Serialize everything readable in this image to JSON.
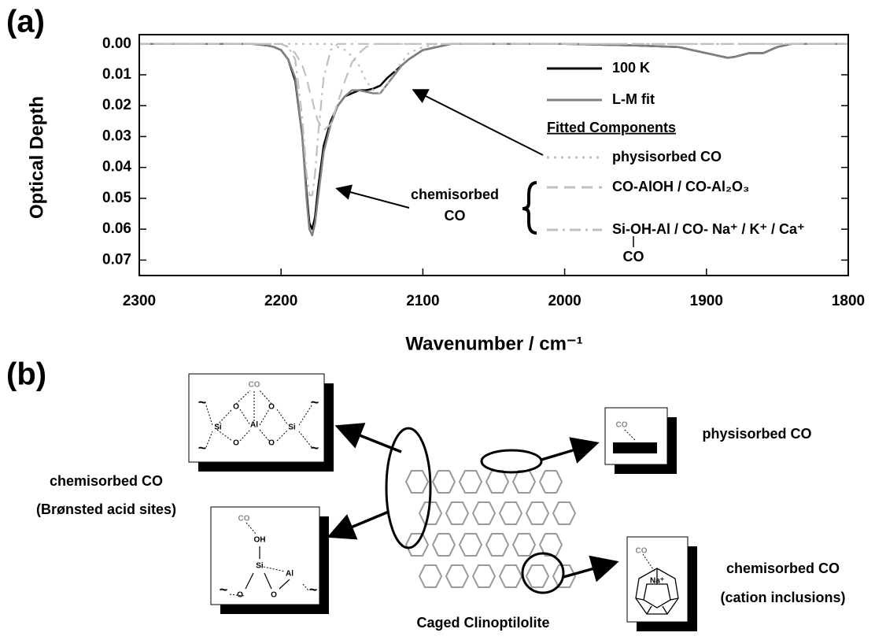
{
  "chart_data": {
    "type": "line",
    "panel_label": "(a)",
    "xlabel": "Wavenumber / cm⁻¹",
    "ylabel": "Optical Depth",
    "x": [
      2300,
      2250,
      2220,
      2210,
      2205,
      2200,
      2195,
      2190,
      2185,
      2182,
      2180,
      2178,
      2176,
      2174,
      2170,
      2165,
      2160,
      2155,
      2150,
      2145,
      2140,
      2135,
      2130,
      2125,
      2120,
      2115,
      2110,
      2100,
      2090,
      2080,
      2050,
      2000,
      1950,
      1920,
      1910,
      1900,
      1890,
      1885,
      1880,
      1870,
      1860,
      1850,
      1840,
      1800
    ],
    "xlim": [
      2300,
      1800
    ],
    "xticks": [
      2300,
      2200,
      2100,
      2000,
      1900,
      1800
    ],
    "ylim": [
      -0.003,
      0.075
    ],
    "y_inverted": true,
    "yticks": [
      {
        "value": 0,
        "label": "0.00"
      },
      {
        "value": 0.01,
        "label": "0.01"
      },
      {
        "value": 0.02,
        "label": "0.02"
      },
      {
        "value": 0.03,
        "label": "0.03"
      },
      {
        "value": 0.04,
        "label": "0.04"
      },
      {
        "value": 0.05,
        "label": "0.05"
      },
      {
        "value": 0.06,
        "label": "0.06"
      },
      {
        "value": 0.07,
        "label": "0.07"
      }
    ],
    "series": [
      {
        "name": "100 K",
        "color": "#000000",
        "linestyle": "solid",
        "values": [
          0,
          0,
          0,
          0.0005,
          0.001,
          0.002,
          0.005,
          0.012,
          0.03,
          0.048,
          0.058,
          0.06,
          0.056,
          0.047,
          0.033,
          0.025,
          0.02,
          0.017,
          0.016,
          0.015,
          0.015,
          0.0145,
          0.0135,
          0.011,
          0.009,
          0.007,
          0.005,
          0.002,
          0.001,
          0,
          0,
          0,
          0.0005,
          0.001,
          0.002,
          0.003,
          0.004,
          0.0045,
          0.0042,
          0.003,
          0.003,
          0.001,
          0,
          0
        ]
      },
      {
        "name": "L-M fit",
        "color": "#808080",
        "linestyle": "solid",
        "values": [
          0,
          0,
          0,
          0.0005,
          0.001,
          0.002,
          0.005,
          0.011,
          0.03,
          0.05,
          0.06,
          0.062,
          0.058,
          0.05,
          0.035,
          0.026,
          0.02,
          0.017,
          0.015,
          0.015,
          0.0155,
          0.016,
          0.016,
          0.013,
          0.01,
          0.007,
          0.005,
          0.002,
          0.001,
          0,
          0,
          0,
          0.0005,
          0.001,
          0.002,
          0.003,
          0.004,
          0.0045,
          0.0042,
          0.003,
          0.003,
          0.001,
          0,
          0
        ]
      },
      {
        "name": "physisorbed CO",
        "color": "#c0c0c0",
        "linestyle": "dotted",
        "values": [
          0,
          0,
          0,
          0,
          0,
          0,
          0,
          0,
          0,
          0,
          0,
          0,
          0,
          0,
          0,
          0,
          0.001,
          0.002,
          0.004,
          0.007,
          0.012,
          0.015,
          0.016,
          0.013,
          0.009,
          0.006,
          0.003,
          0.001,
          0,
          0,
          0,
          0,
          0,
          0,
          0,
          0,
          0,
          0,
          0,
          0,
          0,
          0,
          0,
          0
        ]
      },
      {
        "name": "CO-AlOH / CO-Al₂O₃",
        "color": "#c0c0c0",
        "linestyle": "dashed",
        "values": [
          0,
          0,
          0,
          0,
          0,
          0,
          0.001,
          0.003,
          0.007,
          0.011,
          0.015,
          0.018,
          0.022,
          0.025,
          0.028,
          0.026,
          0.019,
          0.012,
          0.006,
          0.003,
          0.001,
          0,
          0,
          0,
          0,
          0,
          0,
          0,
          0,
          0,
          0,
          0,
          0,
          0,
          0,
          0,
          0,
          0,
          0,
          0,
          0,
          0,
          0,
          0
        ]
      },
      {
        "name": "Si-OH-Al / CO- Na⁺ / K⁺ / Ca⁺",
        "color": "#c0c0c0",
        "linestyle": "dashdot",
        "values": [
          0,
          0,
          0,
          0,
          0,
          0,
          0.001,
          0.005,
          0.024,
          0.042,
          0.049,
          0.049,
          0.042,
          0.03,
          0.011,
          0.002,
          0,
          0,
          0,
          0,
          0,
          0,
          0,
          0,
          0,
          0,
          0,
          0,
          0,
          0,
          0,
          0,
          0,
          0,
          0,
          0,
          0,
          0,
          0,
          0,
          0,
          0,
          0,
          0
        ]
      }
    ],
    "legend_heading": "Fitted Components",
    "legend_subnote": "CO",
    "annotation": [
      "chemisorbed",
      "CO"
    ]
  },
  "diagram": {
    "panel_label": "(b)",
    "bronsted_label": [
      "chemisorbed CO",
      "(Brønsted acid sites)"
    ],
    "physisorbed_label": "physisorbed CO",
    "cation_label": [
      "chemisorbed CO",
      "(cation inclusions)"
    ],
    "framework_label": "Caged Clinoptilolite",
    "box1": [
      "CO",
      "O",
      "O",
      "Si",
      "Al",
      "Si",
      "O",
      "O",
      "~",
      "~",
      "~",
      "~"
    ],
    "box2": [
      "CO",
      "OH",
      "Si",
      "Al",
      "O",
      "O",
      "~",
      "~"
    ],
    "box3": [
      "CO"
    ],
    "box4": [
      "CO",
      "Na⁺"
    ]
  }
}
